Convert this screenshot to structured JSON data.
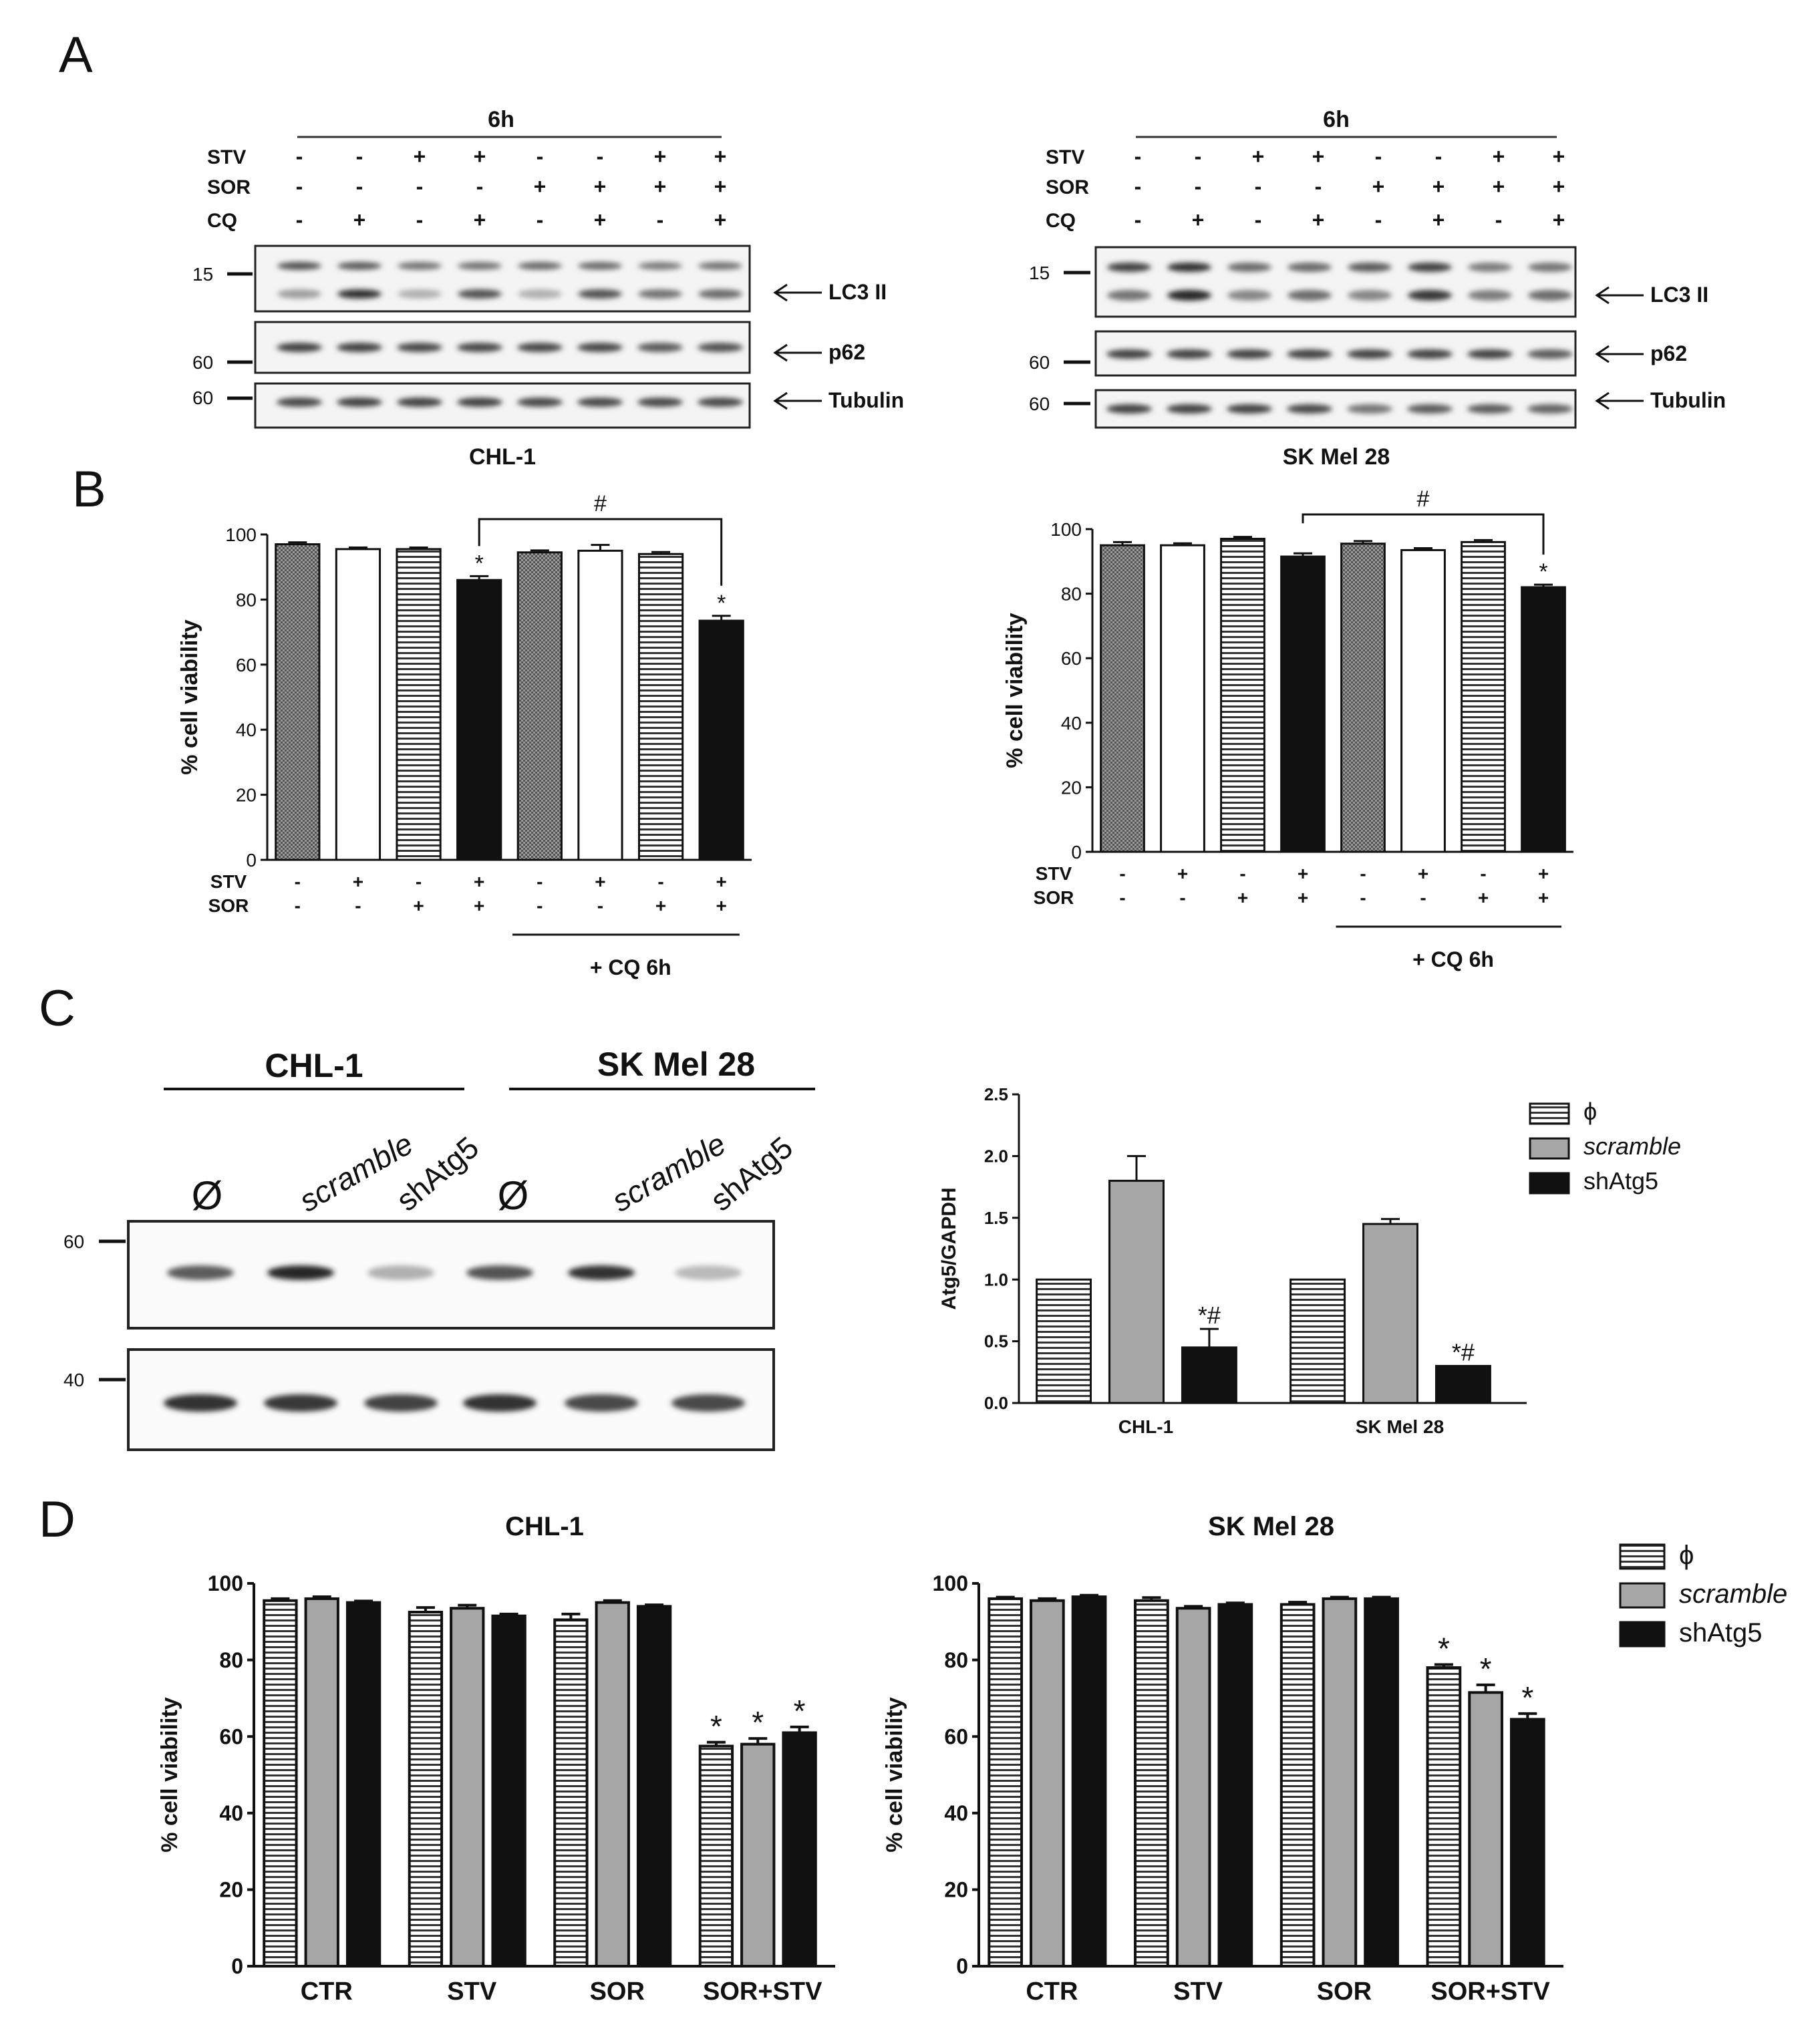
{
  "panels": {
    "a": "A",
    "b": "B",
    "c": "C",
    "d": "D"
  },
  "blots_a": [
    {
      "id": "chl1",
      "cell_line": "CHL-1",
      "time": "6h",
      "rows": [
        {
          "label": "STV",
          "signs": [
            "-",
            "-",
            "+",
            "+",
            "-",
            "-",
            "+",
            "+"
          ]
        },
        {
          "label": "SOR",
          "signs": [
            "-",
            "-",
            "-",
            "-",
            "+",
            "+",
            "+",
            "+"
          ]
        },
        {
          "label": "CQ",
          "signs": [
            "-",
            "+",
            "-",
            "+",
            "-",
            "+",
            "-",
            "+"
          ]
        }
      ],
      "markers": {
        "lc3": "15",
        "p62": "60",
        "tubulin": "60"
      },
      "bands": {
        "lc3": "LC3 II",
        "p62": "p62",
        "tubulin": "Tubulin"
      }
    },
    {
      "id": "skmel",
      "cell_line": "SK Mel 28",
      "time": "6h",
      "rows": [
        {
          "label": "STV",
          "signs": [
            "-",
            "-",
            "+",
            "+",
            "-",
            "-",
            "+",
            "+"
          ]
        },
        {
          "label": "SOR",
          "signs": [
            "-",
            "-",
            "-",
            "-",
            "+",
            "+",
            "+",
            "+"
          ]
        },
        {
          "label": "CQ",
          "signs": [
            "-",
            "+",
            "-",
            "+",
            "-",
            "+",
            "-",
            "+"
          ]
        }
      ],
      "markers": {
        "lc3": "15",
        "p62": "60",
        "tubulin": "60"
      },
      "bands": {
        "lc3": "LC3 II",
        "p62": "p62",
        "tubulin": "Tubulin"
      }
    }
  ],
  "blot_c": {
    "groups": [
      "CHL-1",
      "SK Mel 28"
    ],
    "lanes": [
      "Ø",
      "scramble",
      "shAtg5",
      "Ø",
      "scramble",
      "shAtg5"
    ],
    "markers": [
      "60",
      "40"
    ]
  },
  "colors": {
    "black": "#111111",
    "gray": "#a6a6a6",
    "white": "#ffffff"
  },
  "chart_data": [
    {
      "id": "b_chl1",
      "type": "bar",
      "ylabel": "% cell viability",
      "ylim": [
        0,
        100
      ],
      "yticks": [
        "0",
        "20",
        "40",
        "60",
        "80",
        "100"
      ],
      "values": [
        97,
        95.5,
        95.5,
        86,
        94.5,
        95,
        94,
        73.5
      ],
      "errors": [
        0.6,
        0.5,
        0.5,
        1.2,
        0.6,
        1.8,
        0.6,
        1.5
      ],
      "fills": [
        "check",
        "white",
        "hstripe",
        "black",
        "check",
        "white",
        "hstripe",
        "black"
      ],
      "stars": [
        "",
        "",
        "",
        "*",
        "",
        "",
        "",
        "*"
      ],
      "rows": [
        {
          "label": "STV",
          "signs": [
            "-",
            "+",
            "-",
            "+",
            "-",
            "+",
            "-",
            "+"
          ]
        },
        {
          "label": "SOR",
          "signs": [
            "-",
            "-",
            "+",
            "+",
            "-",
            "-",
            "+",
            "+"
          ]
        }
      ],
      "bracket_label": "#",
      "underline_label": "+ CQ 6h"
    },
    {
      "id": "b_skmel",
      "type": "bar",
      "ylabel": "% cell viability",
      "ylim": [
        0,
        100
      ],
      "yticks": [
        "0",
        "20",
        "40",
        "60",
        "80",
        "100"
      ],
      "values": [
        95,
        95,
        97,
        91.5,
        95.5,
        93.5,
        96,
        82
      ],
      "errors": [
        1.0,
        0.6,
        0.6,
        1.0,
        0.8,
        0.6,
        0.6,
        0.8
      ],
      "fills": [
        "check",
        "white",
        "hstripe",
        "black",
        "check",
        "white",
        "hstripe",
        "black"
      ],
      "stars": [
        "",
        "",
        "",
        "",
        "",
        "",
        "",
        "*"
      ],
      "rows": [
        {
          "label": "STV",
          "signs": [
            "-",
            "+",
            "-",
            "+",
            "-",
            "+",
            "-",
            "+"
          ]
        },
        {
          "label": "SOR",
          "signs": [
            "-",
            "-",
            "+",
            "+",
            "-",
            "-",
            "+",
            "+"
          ]
        }
      ],
      "bracket_label": "#",
      "underline_label": "+ CQ 6h"
    },
    {
      "id": "c_atg5",
      "type": "bar",
      "ylabel": "Atg5/GAPDH",
      "ylim": [
        0,
        2.5
      ],
      "yticks": [
        "0.0",
        "0.5",
        "1.0",
        "1.5",
        "2.0",
        "2.5"
      ],
      "categories": [
        "CHL-1",
        "SK Mel 28"
      ],
      "series": [
        {
          "name": "ϕ",
          "fill": "hstripe",
          "values": [
            1.0,
            1.0
          ],
          "errors": [
            0,
            0
          ],
          "stars": [
            "",
            ""
          ]
        },
        {
          "name": "scramble",
          "fill": "gray",
          "values": [
            1.8,
            1.45
          ],
          "errors": [
            0.2,
            0.04
          ],
          "stars": [
            "",
            ""
          ]
        },
        {
          "name": "shAtg5",
          "fill": "black",
          "values": [
            0.45,
            0.3
          ],
          "errors": [
            0.15,
            0
          ],
          "stars": [
            "*#",
            "*#"
          ]
        }
      ]
    },
    {
      "id": "d_chl1",
      "type": "bar",
      "title": "CHL-1",
      "ylabel": "% cell viability",
      "ylim": [
        0,
        100
      ],
      "yticks": [
        "0",
        "20",
        "40",
        "60",
        "80",
        "100"
      ],
      "categories": [
        "CTR",
        "STV",
        "SOR",
        "SOR+STV"
      ],
      "series": [
        {
          "name": "ϕ",
          "fill": "hstripe",
          "values": [
            95.5,
            92.5,
            90.5,
            57.5
          ],
          "errors": [
            0.5,
            1.2,
            1.5,
            1.0
          ],
          "stars": [
            "",
            "",
            "",
            "*"
          ]
        },
        {
          "name": "scramble",
          "fill": "gray",
          "values": [
            96,
            93.5,
            95,
            58
          ],
          "errors": [
            0.5,
            0.8,
            0.5,
            1.5
          ],
          "stars": [
            "",
            "",
            "",
            "*"
          ]
        },
        {
          "name": "shAtg5",
          "fill": "black",
          "values": [
            95,
            91.5,
            94,
            61
          ],
          "errors": [
            0.4,
            0.5,
            0.4,
            1.5
          ],
          "stars": [
            "",
            "",
            "",
            "*"
          ]
        }
      ]
    },
    {
      "id": "d_skmel",
      "type": "bar",
      "title": "SK Mel 28",
      "ylabel": "% cell viability",
      "ylim": [
        0,
        100
      ],
      "yticks": [
        "0",
        "20",
        "40",
        "60",
        "80",
        "100"
      ],
      "categories": [
        "CTR",
        "STV",
        "SOR",
        "SOR+STV"
      ],
      "series": [
        {
          "name": "ϕ",
          "fill": "hstripe",
          "values": [
            96,
            95.5,
            94.5,
            78
          ],
          "errors": [
            0.4,
            0.8,
            0.6,
            0.8
          ],
          "stars": [
            "",
            "",
            "",
            "*"
          ]
        },
        {
          "name": "scramble",
          "fill": "gray",
          "values": [
            95.5,
            93.5,
            96,
            71.5
          ],
          "errors": [
            0.5,
            0.5,
            0.4,
            2.0
          ],
          "stars": [
            "",
            "",
            "",
            "*"
          ]
        },
        {
          "name": "shAtg5",
          "fill": "black",
          "values": [
            96.5,
            94.5,
            96,
            64.5
          ],
          "errors": [
            0.4,
            0.4,
            0.4,
            1.5
          ],
          "stars": [
            "",
            "",
            "",
            "*"
          ]
        }
      ]
    }
  ]
}
